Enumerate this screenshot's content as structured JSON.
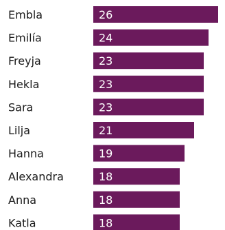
{
  "chart_data": {
    "type": "bar",
    "orientation": "horizontal",
    "categories": [
      "Embla",
      "Emilía",
      "Freyja",
      "Hekla",
      "Sara",
      "Lilja",
      "Hanna",
      "Alexandra",
      "Anna",
      "Katla"
    ],
    "values": [
      26,
      24,
      23,
      23,
      23,
      21,
      19,
      18,
      18,
      18
    ],
    "bar_color": "#6b1a5c",
    "value_label_color": "#ffffff",
    "xlim": [
      0,
      26
    ],
    "grid": false,
    "legend": "none"
  }
}
